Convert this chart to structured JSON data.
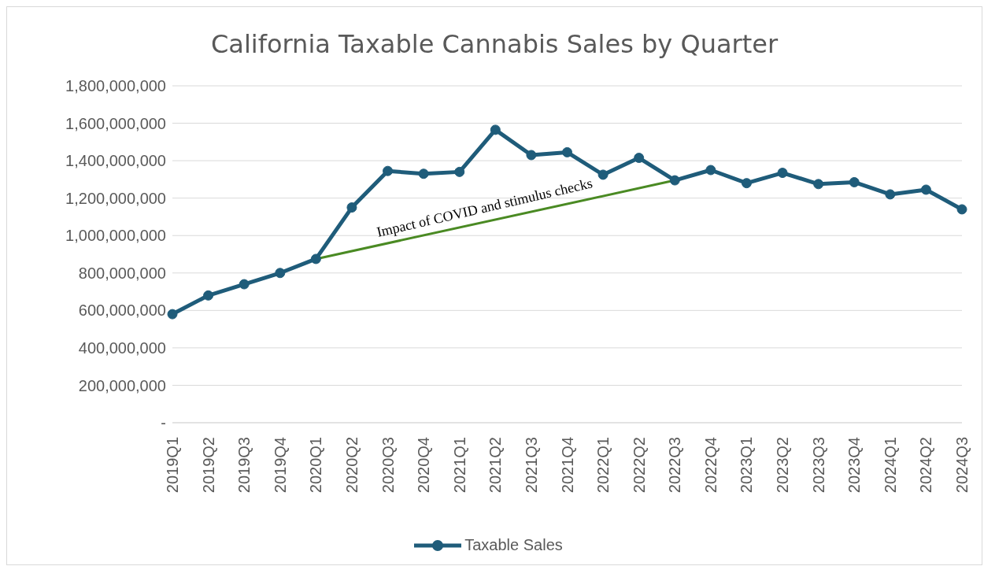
{
  "chart_data": {
    "type": "line",
    "title": "California Taxable Cannabis Sales by Quarter",
    "categories": [
      "2019Q1",
      "2019Q2",
      "2019Q3",
      "2019Q4",
      "2020Q1",
      "2020Q2",
      "2020Q3",
      "2020Q4",
      "2021Q1",
      "2021Q2",
      "2021Q3",
      "2021Q4",
      "2022Q1",
      "2022Q2",
      "2022Q3",
      "2022Q4",
      "2023Q1",
      "2023Q2",
      "2023Q3",
      "2023Q4",
      "2024Q1",
      "2024Q2",
      "2024Q3"
    ],
    "series": [
      {
        "name": "Taxable Sales",
        "color": "#1f5c7a",
        "values": [
          580000000,
          680000000,
          740000000,
          800000000,
          875000000,
          1150000000,
          1345000000,
          1330000000,
          1340000000,
          1565000000,
          1430000000,
          1445000000,
          1325000000,
          1415000000,
          1295000000,
          1350000000,
          1280000000,
          1335000000,
          1275000000,
          1285000000,
          1220000000,
          1245000000,
          1140000000
        ]
      },
      {
        "type": "line",
        "color": "#4a8a23",
        "marker": "none",
        "values": [
          null,
          null,
          null,
          null,
          875000000,
          null,
          null,
          null,
          null,
          null,
          null,
          null,
          null,
          null,
          1295000000,
          null,
          null,
          null,
          null,
          null,
          null,
          null,
          null
        ]
      }
    ],
    "ylim": [
      0,
      1800000000
    ],
    "yticks": [
      {
        "value": 0,
        "label": "-"
      },
      {
        "value": 200000000,
        "label": "200,000,000"
      },
      {
        "value": 400000000,
        "label": "400,000,000"
      },
      {
        "value": 600000000,
        "label": "600,000,000"
      },
      {
        "value": 800000000,
        "label": "800,000,000"
      },
      {
        "value": 1000000000,
        "label": "1,000,000,000"
      },
      {
        "value": 1200000000,
        "label": "1,200,000,000"
      },
      {
        "value": 1400000000,
        "label": "1,400,000,000"
      },
      {
        "value": 1600000000,
        "label": "1,600,000,000"
      },
      {
        "value": 1800000000,
        "label": "1,800,000,000"
      }
    ],
    "grid": "y",
    "legend": "bottom",
    "marker": "circle",
    "line_style": "solid",
    "annotations": [
      "Impact of COVID and stimulus checks"
    ]
  }
}
